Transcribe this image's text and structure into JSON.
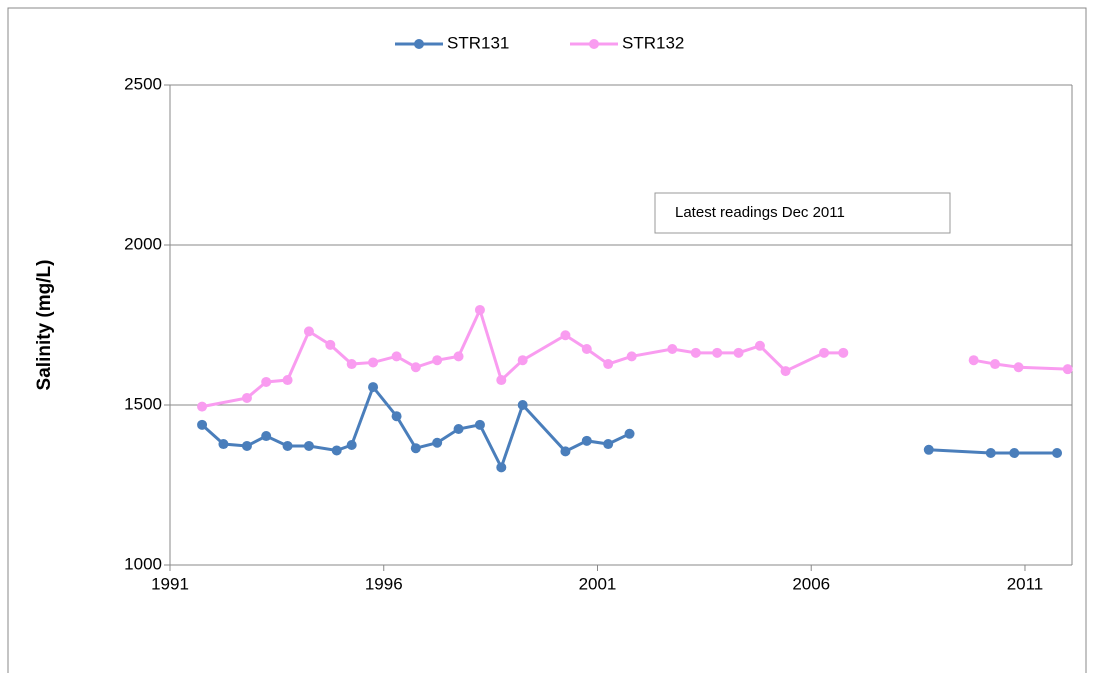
{
  "chart_data": {
    "type": "line",
    "y_label": "Salinity (mg/L)",
    "annotation": "Latest readings Dec 2011",
    "xlim": [
      1991,
      2012.1
    ],
    "xticks": [
      1991,
      1996,
      2001,
      2006,
      2011
    ],
    "ylim": [
      1000,
      2500
    ],
    "yticks": [
      1000,
      1500,
      2000,
      2500
    ],
    "grid": true,
    "legend": "top",
    "series": [
      {
        "name": "STR131",
        "color": "#4a7ebb",
        "x": [
          1991.75,
          1992.25,
          1992.8,
          1993.25,
          1993.75,
          1994.25,
          1994.9,
          1995.25,
          1995.75,
          1996.3,
          1996.75,
          1997.25,
          1997.75,
          1998.25,
          1998.75,
          1999.25,
          2000.25,
          2000.75,
          2001.25,
          2001.75,
          2005,
          2008.75,
          2010.2,
          2010.75,
          2011.75
        ],
        "values": [
          1438,
          1378,
          1372,
          1403,
          1372,
          1372,
          1358,
          1375,
          1556,
          1465,
          1365,
          1382,
          1425,
          1438,
          1305,
          1500,
          1355,
          1388,
          1378,
          1410,
          null,
          1360,
          1350,
          1350,
          1350
        ]
      },
      {
        "name": "STR132",
        "color": "#f99cf0",
        "x": [
          1991.75,
          1992.8,
          1993.25,
          1993.75,
          1994.25,
          1994.75,
          1995.25,
          1995.75,
          1996.3,
          1996.75,
          1997.25,
          1997.75,
          1998.25,
          1998.75,
          1999.25,
          2000.25,
          2000.75,
          2001.25,
          2001.8,
          2002.75,
          2003.3,
          2003.8,
          2004.3,
          2004.8,
          2005.4,
          2006.3,
          2006.75,
          2008,
          2009.8,
          2010.3,
          2010.85,
          2012
        ],
        "values": [
          1495,
          1522,
          1572,
          1578,
          1730,
          1688,
          1628,
          1633,
          1652,
          1618,
          1640,
          1652,
          1797,
          1578,
          1640,
          1718,
          1675,
          1628,
          1652,
          1675,
          1663,
          1663,
          1663,
          1685,
          1606,
          1663,
          1663,
          null,
          1640,
          1628,
          1618,
          1612
        ]
      }
    ]
  }
}
